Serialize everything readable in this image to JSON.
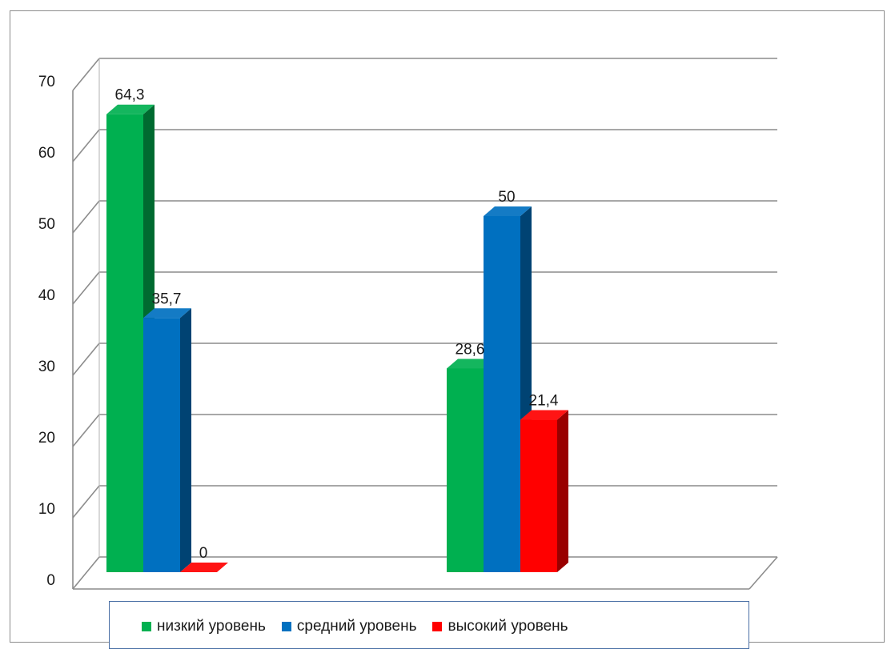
{
  "chart_data": {
    "type": "bar",
    "categories": [
      "",
      ""
    ],
    "series": [
      {
        "name": "низкий уровень",
        "values": [
          64.3,
          28.6
        ],
        "labels": [
          "64,3",
          "28,6"
        ],
        "color": "#00b050"
      },
      {
        "name": "средний уровень",
        "values": [
          35.7,
          50
        ],
        "labels": [
          "35,7",
          "50"
        ],
        "color": "#0070c0"
      },
      {
        "name": "высокий уровень",
        "values": [
          0,
          21.4
        ],
        "labels": [
          "0",
          "21,4"
        ],
        "color": "#ff0000"
      }
    ],
    "ylim": [
      0,
      70
    ],
    "yticks": [
      "0",
      "10",
      "20",
      "30",
      "40",
      "50",
      "60",
      "70"
    ],
    "title": "",
    "xlabel": "",
    "ylabel": "",
    "grid": true,
    "legend_position": "bottom",
    "style": "3d-clustered-column"
  }
}
